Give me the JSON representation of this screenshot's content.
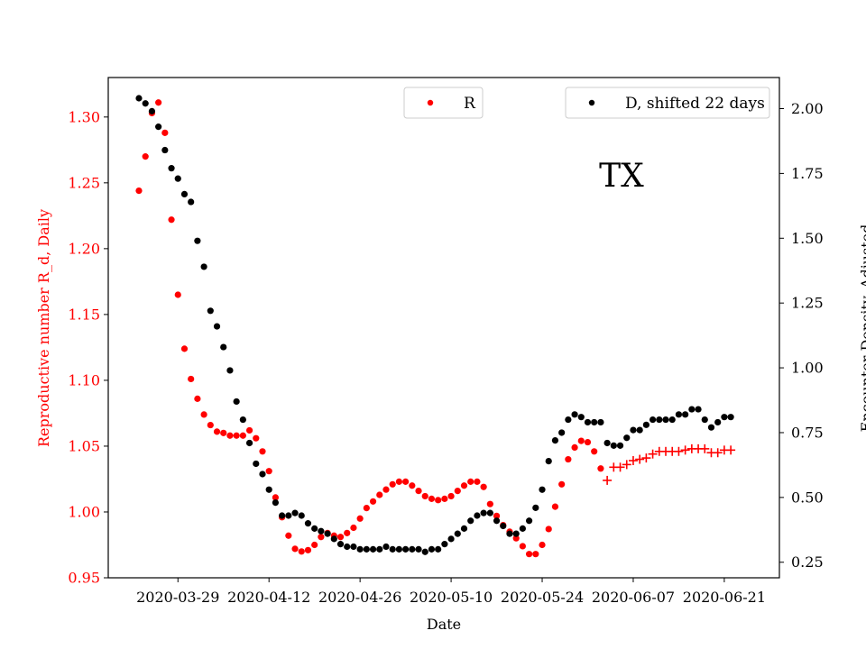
{
  "chart_data": {
    "type": "scatter",
    "annotation": "TX",
    "xlabel": "Date",
    "x_tick_labels": [
      "2020-03-29",
      "2020-04-12",
      "2020-04-26",
      "2020-05-10",
      "2020-05-24",
      "2020-06-07",
      "2020-06-21"
    ],
    "left_axis": {
      "label": "Reproductive number R_d, Daily",
      "color": "#ff0000",
      "ylim": [
        0.95,
        1.33
      ],
      "tick_labels": [
        "0.95",
        "1.00",
        "1.05",
        "1.10",
        "1.15",
        "1.20",
        "1.25",
        "1.30"
      ]
    },
    "right_axis": {
      "label": "Encounter Density, Adjusted",
      "color": "#000000",
      "ylim": [
        0.19,
        2.12
      ],
      "tick_labels": [
        "0.25",
        "0.50",
        "0.75",
        "1.00",
        "1.25",
        "1.50",
        "1.75",
        "2.00"
      ]
    },
    "legend": [
      {
        "label": "R",
        "color": "#ff0000",
        "position": "top-center"
      },
      {
        "label": "D, shifted 22 days",
        "color": "#000000",
        "position": "top-right"
      }
    ],
    "series": [
      {
        "name": "R",
        "axis": "left",
        "color": "#ff0000",
        "marker": "dot",
        "x": [
          "2020-03-23",
          "2020-03-24",
          "2020-03-25",
          "2020-03-26",
          "2020-03-27",
          "2020-03-28",
          "2020-03-29",
          "2020-03-30",
          "2020-03-31",
          "2020-04-01",
          "2020-04-02",
          "2020-04-03",
          "2020-04-04",
          "2020-04-05",
          "2020-04-06",
          "2020-04-07",
          "2020-04-08",
          "2020-04-09",
          "2020-04-10",
          "2020-04-11",
          "2020-04-12",
          "2020-04-13",
          "2020-04-14",
          "2020-04-15",
          "2020-04-16",
          "2020-04-17",
          "2020-04-18",
          "2020-04-19",
          "2020-04-20",
          "2020-04-21",
          "2020-04-22",
          "2020-04-23",
          "2020-04-24",
          "2020-04-25",
          "2020-04-26",
          "2020-04-27",
          "2020-04-28",
          "2020-04-29",
          "2020-04-30",
          "2020-05-01",
          "2020-05-02",
          "2020-05-03",
          "2020-05-04",
          "2020-05-05",
          "2020-05-06",
          "2020-05-07",
          "2020-05-08",
          "2020-05-09",
          "2020-05-10",
          "2020-05-11",
          "2020-05-12",
          "2020-05-13",
          "2020-05-14",
          "2020-05-15",
          "2020-05-16",
          "2020-05-17",
          "2020-05-18",
          "2020-05-19",
          "2020-05-20",
          "2020-05-21",
          "2020-05-22",
          "2020-05-23",
          "2020-05-24",
          "2020-05-25",
          "2020-05-26",
          "2020-05-27",
          "2020-05-28",
          "2020-05-29",
          "2020-05-30",
          "2020-05-31",
          "2020-06-01",
          "2020-06-02"
        ],
        "y": [
          1.244,
          1.27,
          1.303,
          1.311,
          1.288,
          1.222,
          1.165,
          1.124,
          1.101,
          1.086,
          1.074,
          1.066,
          1.061,
          1.06,
          1.058,
          1.058,
          1.058,
          1.062,
          1.056,
          1.046,
          1.031,
          1.011,
          0.996,
          0.982,
          0.972,
          0.97,
          0.971,
          0.975,
          0.981,
          0.984,
          0.982,
          0.981,
          0.984,
          0.988,
          0.995,
          1.003,
          1.008,
          1.013,
          1.017,
          1.021,
          1.023,
          1.023,
          1.02,
          1.016,
          1.012,
          1.01,
          1.009,
          1.01,
          1.012,
          1.016,
          1.02,
          1.023,
          1.023,
          1.019,
          1.006,
          0.997,
          0.99,
          0.985,
          0.98,
          0.974,
          0.968,
          0.968,
          0.975,
          0.987,
          1.004,
          1.021,
          1.04,
          1.049,
          1.054,
          1.053,
          1.046,
          1.033
        ]
      },
      {
        "name": "R",
        "axis": "left",
        "color": "#ff0000",
        "marker": "plus",
        "x": [
          "2020-06-03",
          "2020-06-04",
          "2020-06-05",
          "2020-06-06",
          "2020-06-07",
          "2020-06-08",
          "2020-06-09",
          "2020-06-10",
          "2020-06-11",
          "2020-06-12",
          "2020-06-13",
          "2020-06-14",
          "2020-06-15",
          "2020-06-16",
          "2020-06-17",
          "2020-06-18",
          "2020-06-19",
          "2020-06-20",
          "2020-06-21",
          "2020-06-22"
        ],
        "y": [
          1.024,
          1.034,
          1.034,
          1.036,
          1.039,
          1.04,
          1.041,
          1.044,
          1.046,
          1.046,
          1.046,
          1.046,
          1.047,
          1.048,
          1.048,
          1.048,
          1.045,
          1.045,
          1.047,
          1.047
        ]
      },
      {
        "name": "D, shifted 22 days",
        "axis": "right",
        "color": "#000000",
        "marker": "dot",
        "x": [
          "2020-03-23",
          "2020-03-24",
          "2020-03-25",
          "2020-03-26",
          "2020-03-27",
          "2020-03-28",
          "2020-03-29",
          "2020-03-30",
          "2020-03-31",
          "2020-04-01",
          "2020-04-02",
          "2020-04-03",
          "2020-04-04",
          "2020-04-05",
          "2020-04-06",
          "2020-04-07",
          "2020-04-08",
          "2020-04-09",
          "2020-04-10",
          "2020-04-11",
          "2020-04-12",
          "2020-04-13",
          "2020-04-14",
          "2020-04-15",
          "2020-04-16",
          "2020-04-17",
          "2020-04-18",
          "2020-04-19",
          "2020-04-20",
          "2020-04-21",
          "2020-04-22",
          "2020-04-23",
          "2020-04-24",
          "2020-04-25",
          "2020-04-26",
          "2020-04-27",
          "2020-04-28",
          "2020-04-29",
          "2020-04-30",
          "2020-05-01",
          "2020-05-02",
          "2020-05-03",
          "2020-05-04",
          "2020-05-05",
          "2020-05-06",
          "2020-05-07",
          "2020-05-08",
          "2020-05-09",
          "2020-05-10",
          "2020-05-11",
          "2020-05-12",
          "2020-05-13",
          "2020-05-14",
          "2020-05-15",
          "2020-05-16",
          "2020-05-17",
          "2020-05-18",
          "2020-05-19",
          "2020-05-20",
          "2020-05-21",
          "2020-05-22",
          "2020-05-23",
          "2020-05-24",
          "2020-05-25",
          "2020-05-26",
          "2020-05-27",
          "2020-05-28",
          "2020-05-29",
          "2020-05-30",
          "2020-05-31",
          "2020-06-01",
          "2020-06-02",
          "2020-06-03",
          "2020-06-04",
          "2020-06-05",
          "2020-06-06",
          "2020-06-07",
          "2020-06-08",
          "2020-06-09",
          "2020-06-10",
          "2020-06-11",
          "2020-06-12",
          "2020-06-13",
          "2020-06-14",
          "2020-06-15",
          "2020-06-16",
          "2020-06-17",
          "2020-06-18",
          "2020-06-19",
          "2020-06-20",
          "2020-06-21",
          "2020-06-22"
        ],
        "y": [
          2.04,
          2.02,
          1.99,
          1.93,
          1.84,
          1.77,
          1.73,
          1.67,
          1.64,
          1.49,
          1.39,
          1.22,
          1.16,
          1.08,
          0.99,
          0.87,
          0.8,
          0.71,
          0.63,
          0.59,
          0.53,
          0.48,
          0.43,
          0.43,
          0.44,
          0.43,
          0.4,
          0.38,
          0.37,
          0.36,
          0.34,
          0.32,
          0.31,
          0.31,
          0.3,
          0.3,
          0.3,
          0.3,
          0.31,
          0.3,
          0.3,
          0.3,
          0.3,
          0.3,
          0.29,
          0.3,
          0.3,
          0.32,
          0.34,
          0.36,
          0.38,
          0.41,
          0.43,
          0.44,
          0.44,
          0.41,
          0.39,
          0.36,
          0.36,
          0.38,
          0.41,
          0.46,
          0.53,
          0.64,
          0.72,
          0.75,
          0.8,
          0.82,
          0.81,
          0.79,
          0.79,
          0.79,
          0.71,
          0.7,
          0.7,
          0.73,
          0.76,
          0.76,
          0.78,
          0.8,
          0.8,
          0.8,
          0.8,
          0.82,
          0.82,
          0.84,
          0.84,
          0.8,
          0.77,
          0.79,
          0.81,
          0.81
        ]
      }
    ]
  }
}
